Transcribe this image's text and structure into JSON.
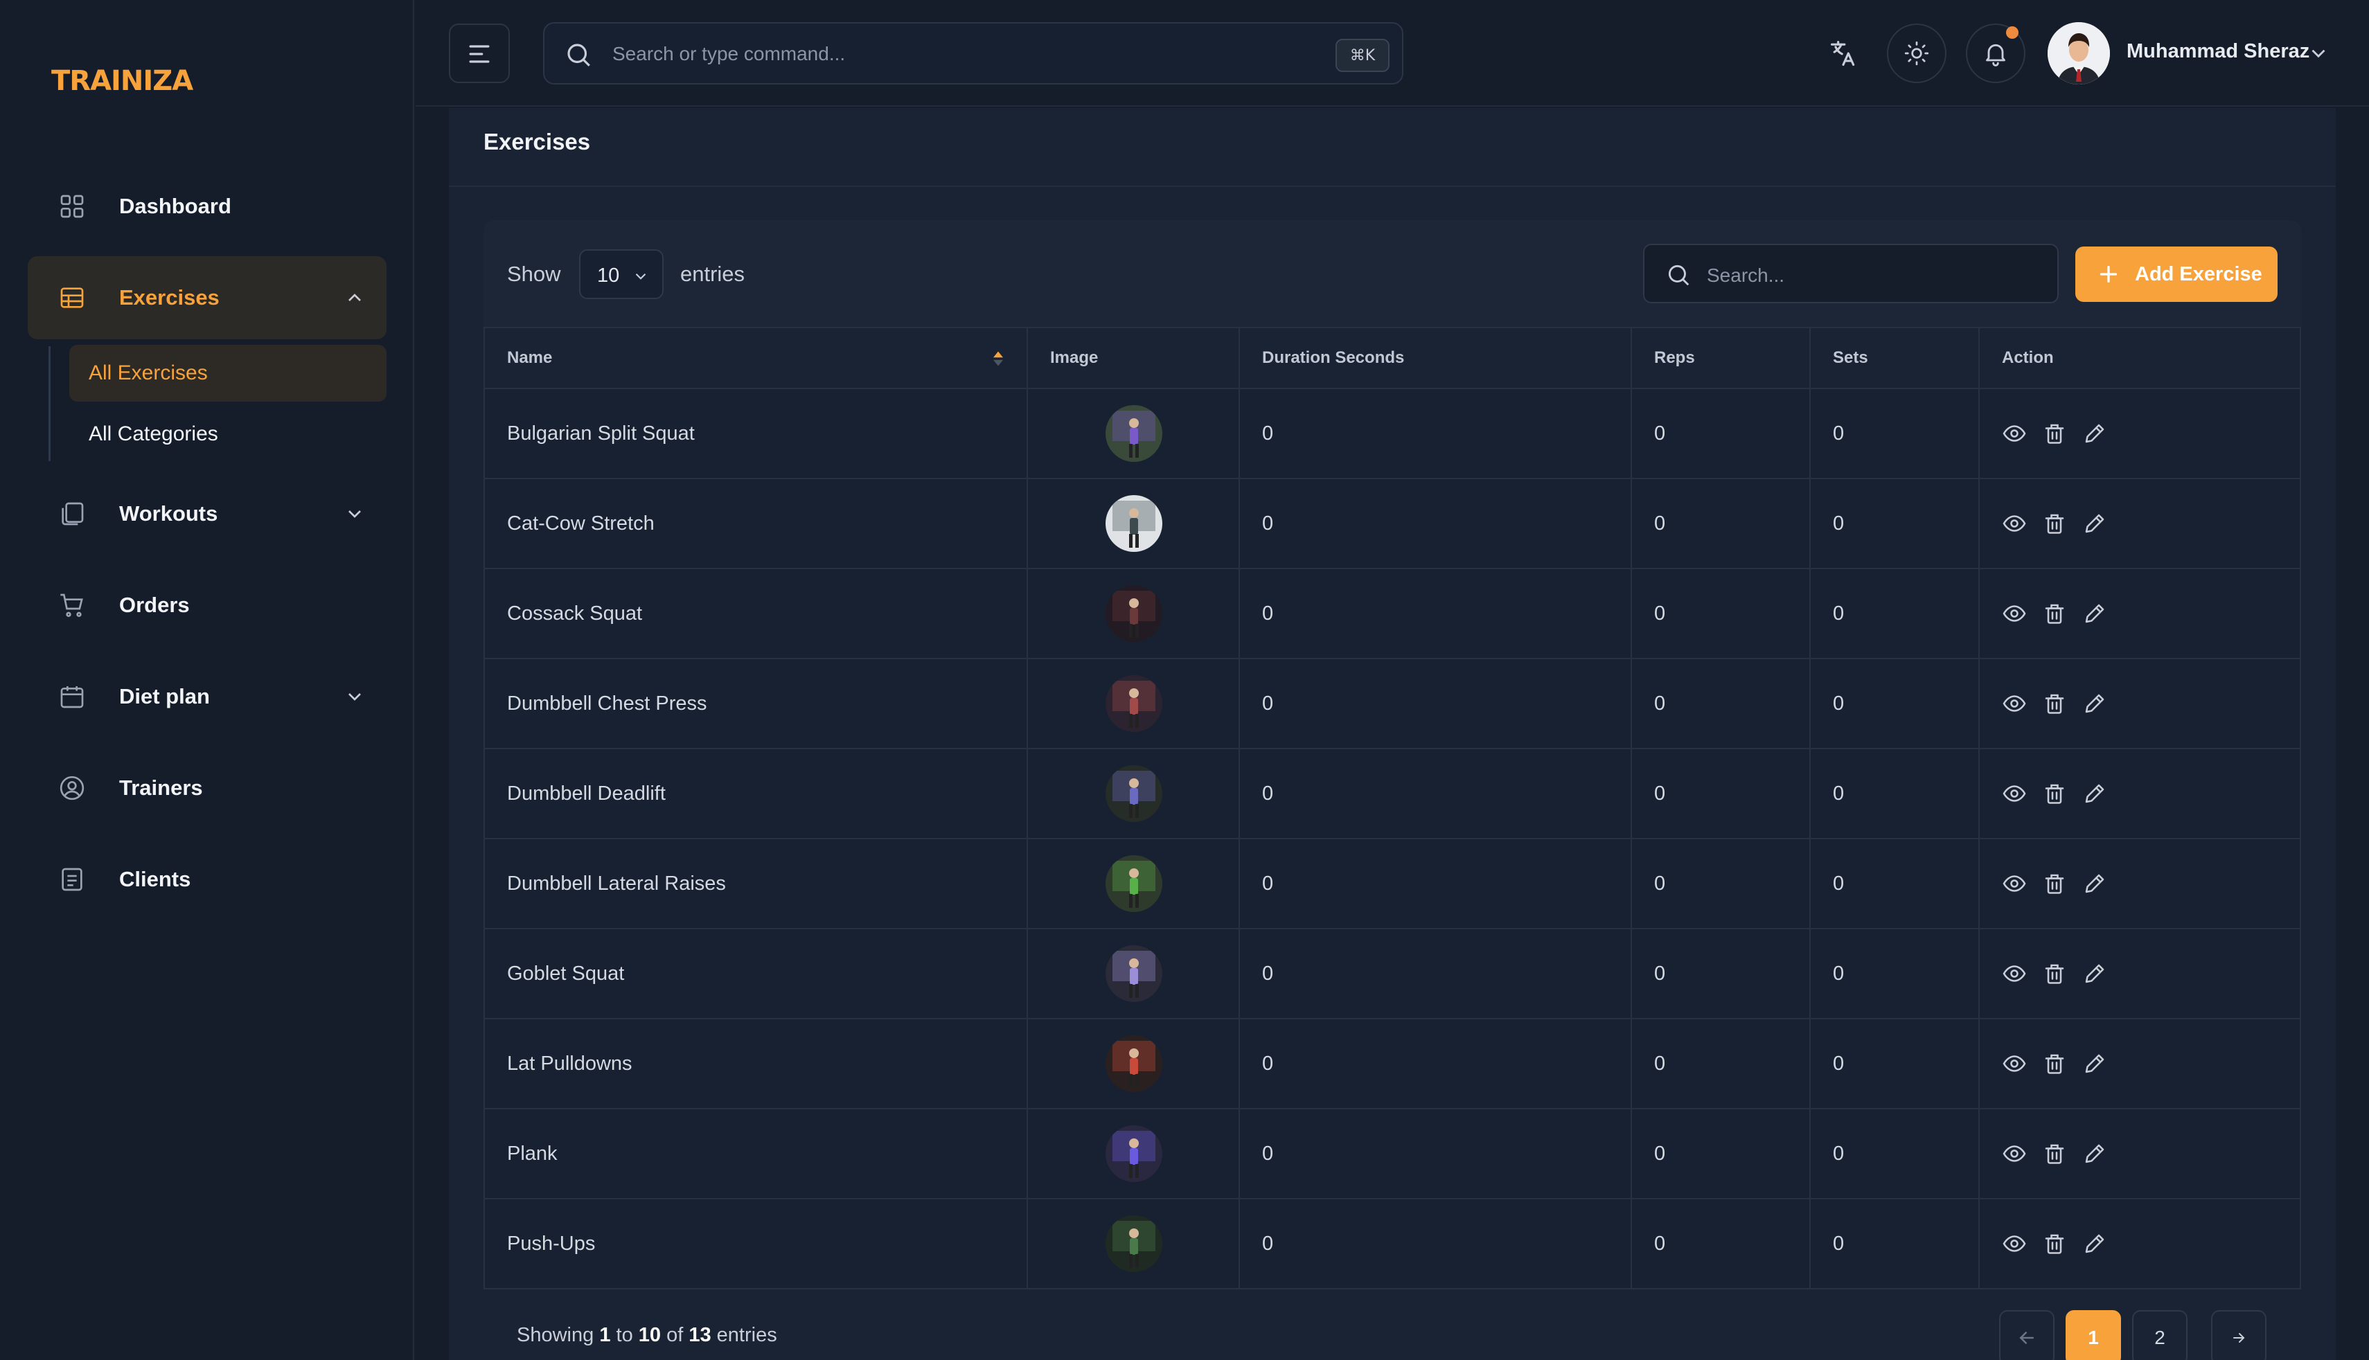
{
  "app": {
    "logo": "TRAINIZA"
  },
  "sidebar": {
    "items": [
      {
        "label": "Dashboard",
        "icon": "grid-icon"
      },
      {
        "label": "Exercises",
        "icon": "table-icon",
        "expanded": true
      },
      {
        "label": "Workouts",
        "icon": "copy-icon",
        "expanded": false
      },
      {
        "label": "Orders",
        "icon": "cart-icon"
      },
      {
        "label": "Diet plan",
        "icon": "calendar-icon",
        "expanded": false
      },
      {
        "label": "Trainers",
        "icon": "user-circle-icon"
      },
      {
        "label": "Clients",
        "icon": "document-icon"
      }
    ],
    "subitems": [
      {
        "label": "All Exercises",
        "active": true
      },
      {
        "label": "All Categories",
        "active": false
      }
    ]
  },
  "topbar": {
    "search_placeholder": "Search or type command...",
    "shortcut": "⌘K",
    "user_name": "Muhammad Sheraz",
    "has_notification": true
  },
  "page": {
    "title": "Exercises"
  },
  "table_controls": {
    "show_label": "Show",
    "entries_value": "10",
    "entries_label": "entries",
    "search_placeholder": "Search...",
    "add_button": "Add Exercise"
  },
  "table": {
    "columns": [
      "Name",
      "Image",
      "Duration Seconds",
      "Reps",
      "Sets",
      "Action"
    ],
    "rows": [
      {
        "name": "Bulgarian Split Squat",
        "duration": "0",
        "reps": "0",
        "sets": "0"
      },
      {
        "name": "Cat-Cow Stretch",
        "duration": "0",
        "reps": "0",
        "sets": "0"
      },
      {
        "name": "Cossack Squat",
        "duration": "0",
        "reps": "0",
        "sets": "0"
      },
      {
        "name": "Dumbbell Chest Press",
        "duration": "0",
        "reps": "0",
        "sets": "0"
      },
      {
        "name": "Dumbbell Deadlift",
        "duration": "0",
        "reps": "0",
        "sets": "0"
      },
      {
        "name": "Dumbbell Lateral Raises",
        "duration": "0",
        "reps": "0",
        "sets": "0"
      },
      {
        "name": "Goblet Squat",
        "duration": "0",
        "reps": "0",
        "sets": "0"
      },
      {
        "name": "Lat Pulldowns",
        "duration": "0",
        "reps": "0",
        "sets": "0"
      },
      {
        "name": "Plank",
        "duration": "0",
        "reps": "0",
        "sets": "0"
      },
      {
        "name": "Push-Ups",
        "duration": "0",
        "reps": "0",
        "sets": "0"
      }
    ]
  },
  "footer": {
    "showing": "Showing",
    "from": "1",
    "to_word": "to",
    "to": "10",
    "of_word": "of",
    "total": "13",
    "entries": "entries",
    "pages": [
      "1",
      "2"
    ],
    "current_page": "1"
  },
  "colors": {
    "accent": "#f7a23b",
    "background": "#151d2b",
    "panel": "#1c2636"
  }
}
